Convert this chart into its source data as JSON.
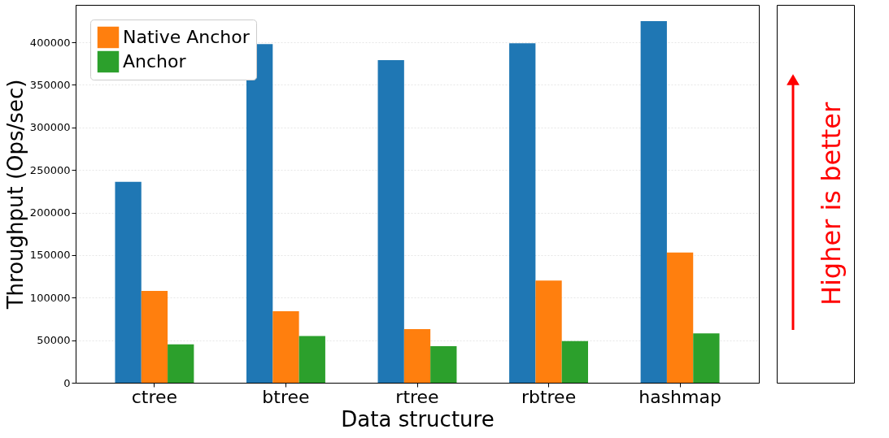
{
  "chart_data": {
    "type": "bar",
    "xlabel": "Data structure",
    "ylabel": "Throughput (Ops/sec)",
    "categories": [
      "ctree",
      "btree",
      "rtree",
      "rbtree",
      "hashmap"
    ],
    "series": [
      {
        "color": "#1f77b4",
        "values": [
          236000,
          398000,
          379000,
          399000,
          425000
        ]
      },
      {
        "name": "Native Anchor",
        "color": "#ff7f0e",
        "values": [
          108000,
          84000,
          63000,
          120000,
          153000
        ]
      },
      {
        "name": "Anchor",
        "color": "#2ca02c",
        "values": [
          45000,
          55000,
          43000,
          49000,
          58000
        ]
      }
    ],
    "ylim": [
      0,
      444000
    ],
    "yticks": [
      0,
      50000,
      100000,
      150000,
      200000,
      250000,
      300000,
      350000,
      400000
    ],
    "grid": "y",
    "legend": "top left",
    "annotations": [
      "Higher is better"
    ]
  }
}
